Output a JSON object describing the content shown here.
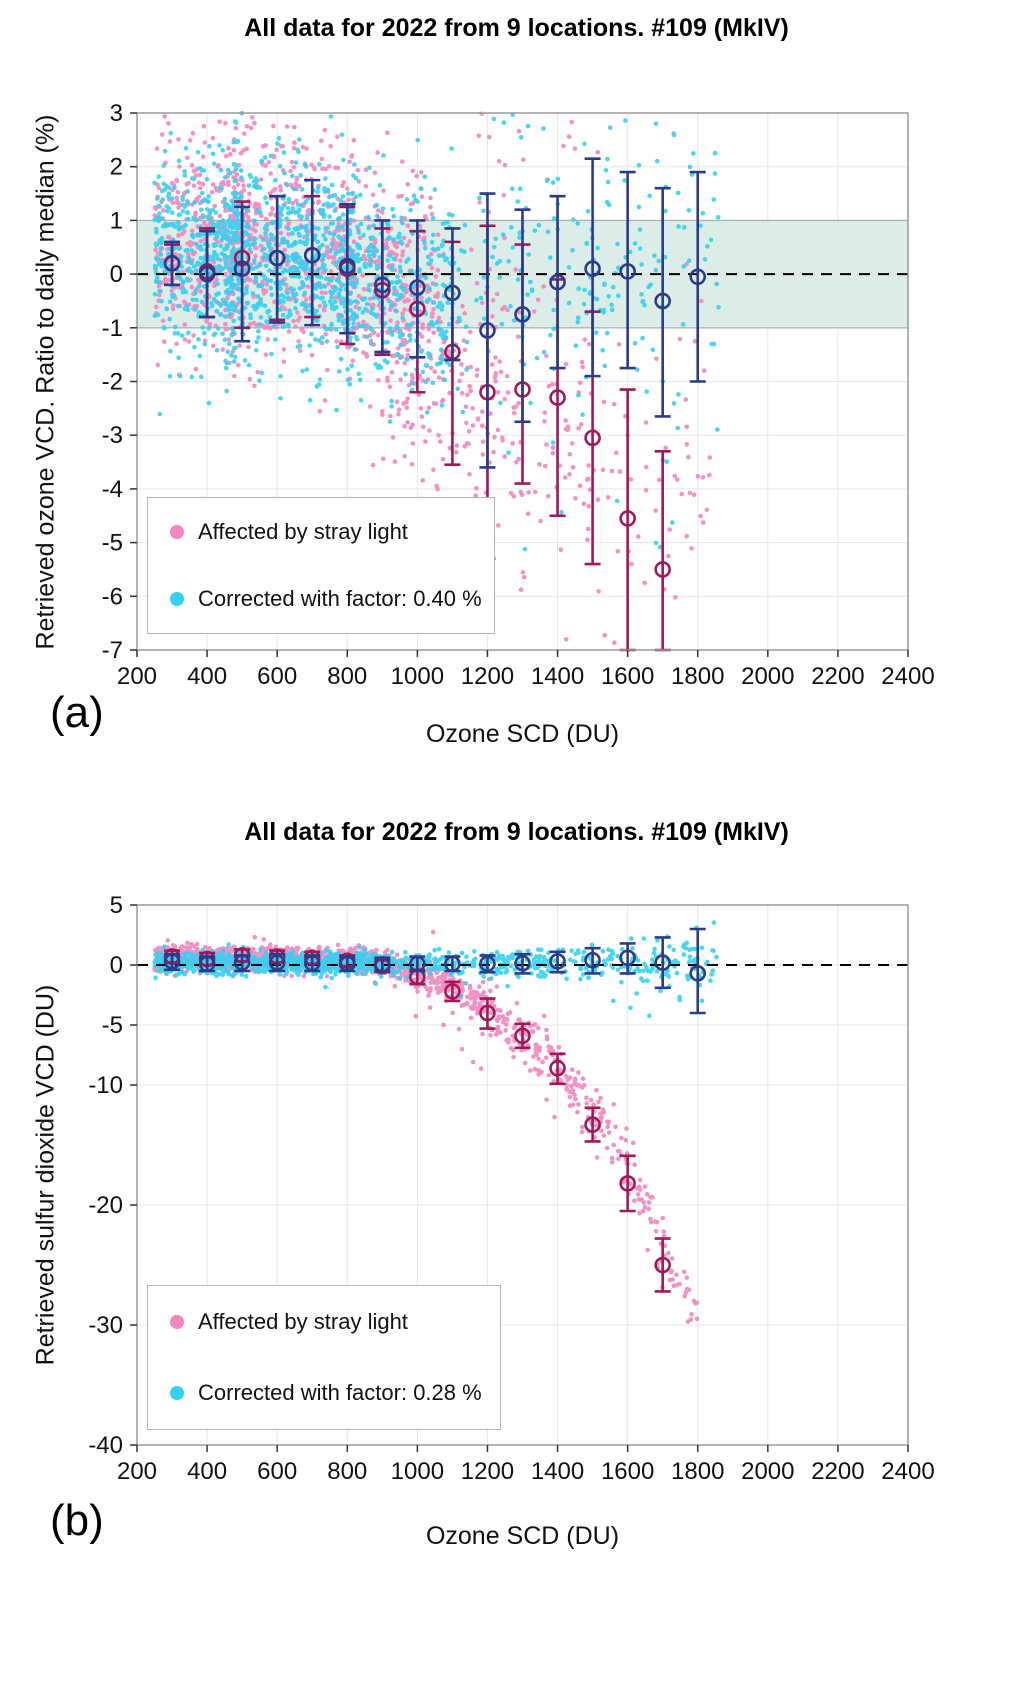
{
  "chart_data": [
    {
      "type": "scatter",
      "panel_label": "(a)",
      "title": "All data for 2022 from 9 locations. #109 (MkIV)",
      "xlabel": "Ozone SCD (DU)",
      "ylabel": "Retrieved ozone VCD. Ratio to daily median (%)",
      "xlim": [
        200,
        2400
      ],
      "ylim": [
        -7,
        3
      ],
      "xticks": [
        200,
        400,
        600,
        800,
        1000,
        1200,
        1400,
        1600,
        1800,
        2000,
        2200,
        2400
      ],
      "yticks": [
        3,
        2,
        1,
        0,
        -1,
        -2,
        -3,
        -4,
        -5,
        -6,
        -7
      ],
      "grid": true,
      "zero_line": 0,
      "band": {
        "range": [
          -1,
          1
        ],
        "fill": "#dcede7",
        "edge": "#a3b8b2"
      },
      "legend": [
        {
          "label": "Affected by stray light",
          "color": "#f585bf"
        },
        {
          "label": "Corrected with factor: 0.40 %",
          "color": "#30d2f2"
        }
      ],
      "scatter_series": [
        {
          "name": "affected-by-stray-light",
          "color": "#f585bf",
          "clusters": [
            {
              "x": [
                250,
                500
              ],
              "n": 330,
              "y": [
                0.6,
                0.55
              ],
              "sd": [
                1.0,
                1.05
              ]
            },
            {
              "x": [
                450,
                820
              ],
              "n": 520,
              "y": [
                0.55,
                0.35
              ],
              "sd": [
                1.05,
                1.0
              ]
            },
            {
              "x": [
                800,
                1060
              ],
              "n": 260,
              "y": [
                0.1,
                -0.4
              ],
              "sd": [
                1.0,
                1.1
              ]
            },
            {
              "x": [
                860,
                1260
              ],
              "n": 140,
              "y": [
                -1.5,
                -2.3
              ],
              "sd": [
                1.0,
                1.3
              ]
            },
            {
              "x": [
                1060,
                1500
              ],
              "n": 100,
              "y": [
                -2.2,
                -3.2
              ],
              "sd": [
                1.6,
                1.8
              ]
            },
            {
              "x": [
                1350,
                1840
              ],
              "n": 80,
              "y": [
                -3.2,
                -3.8
              ],
              "sd": [
                1.8,
                1.8
              ]
            },
            {
              "x": [
                1150,
                1550
              ],
              "n": 14,
              "y": [
                2.3,
                2.3
              ],
              "sd": [
                0.4,
                0.4
              ]
            }
          ]
        },
        {
          "name": "corrected",
          "color": "#30d2f2",
          "clusters": [
            {
              "x": [
                250,
                500
              ],
              "n": 380,
              "y": [
                0.4,
                0.4
              ],
              "sd": [
                0.85,
                0.95
              ]
            },
            {
              "x": [
                450,
                820
              ],
              "n": 600,
              "y": [
                0.4,
                0.2
              ],
              "sd": [
                0.95,
                0.95
              ]
            },
            {
              "x": [
                800,
                1100
              ],
              "n": 300,
              "y": [
                -0.1,
                -0.4
              ],
              "sd": [
                0.95,
                1.0
              ]
            },
            {
              "x": [
                1050,
                1560
              ],
              "n": 110,
              "y": [
                -0.2,
                -0.1
              ],
              "sd": [
                1.1,
                1.2
              ]
            },
            {
              "x": [
                1450,
                1860
              ],
              "n": 80,
              "y": [
                0.0,
                0.0
              ],
              "sd": [
                1.2,
                1.3
              ]
            },
            {
              "x": [
                1250,
                1750
              ],
              "n": 12,
              "y": [
                -3.3,
                -3.8
              ],
              "sd": [
                1.3,
                1.5
              ]
            },
            {
              "x": [
                1200,
                1750
              ],
              "n": 10,
              "y": [
                2.6,
                2.6
              ],
              "sd": [
                0.35,
                0.35
              ]
            }
          ]
        }
      ],
      "binned_series": [
        {
          "name": "affected-binned-mean",
          "color": "#a01859",
          "x": [
            300,
            400,
            500,
            600,
            700,
            800,
            900,
            1000,
            1100,
            1200,
            1300,
            1400,
            1500,
            1600,
            1700
          ],
          "y": [
            0.2,
            0.05,
            0.3,
            0.3,
            0.35,
            0.1,
            -0.3,
            -0.65,
            -1.45,
            -2.2,
            -2.15,
            -2.3,
            -3.05,
            -4.55,
            -5.5
          ],
          "hi": [
            0.55,
            0.85,
            1.35,
            1.45,
            1.45,
            1.25,
            0.85,
            0.8,
            0.6,
            0.9,
            0.55,
            -0.1,
            -0.7,
            -2.15,
            -3.3
          ],
          "lo": [
            -0.2,
            -0.8,
            -1.0,
            -0.85,
            -0.8,
            -1.3,
            -1.5,
            -2.2,
            -3.55,
            -5.3,
            -3.9,
            -4.5,
            -5.4,
            -7.0,
            -7.2
          ]
        },
        {
          "name": "corrected-binned-mean",
          "color": "#2b3b8c",
          "x": [
            300,
            400,
            500,
            600,
            700,
            800,
            900,
            1000,
            1100,
            1200,
            1300,
            1400,
            1500,
            1600,
            1700,
            1800
          ],
          "y": [
            0.2,
            0.0,
            0.1,
            0.3,
            0.35,
            0.15,
            -0.2,
            -0.25,
            -0.35,
            -1.05,
            -0.75,
            -0.15,
            0.1,
            0.05,
            -0.5,
            -0.05
          ],
          "hi": [
            0.6,
            0.8,
            1.25,
            1.45,
            1.75,
            1.3,
            1.0,
            1.0,
            0.85,
            1.5,
            1.2,
            1.45,
            2.15,
            1.9,
            1.6,
            1.9
          ],
          "lo": [
            -0.2,
            -0.8,
            -1.25,
            -0.9,
            -0.95,
            -1.1,
            -1.45,
            -1.55,
            -1.6,
            -3.6,
            -2.75,
            -1.75,
            -1.9,
            -1.75,
            -2.65,
            -2.0
          ]
        }
      ]
    },
    {
      "type": "scatter",
      "panel_label": "(b)",
      "title": "All data for 2022 from 9 locations. #109 (MkIV)",
      "xlabel": "Ozone SCD (DU)",
      "ylabel": "Retrieved sulfur dioxide VCD (DU)",
      "xlim": [
        200,
        2400
      ],
      "ylim": [
        -40,
        5
      ],
      "xticks": [
        200,
        400,
        600,
        800,
        1000,
        1200,
        1400,
        1600,
        1800,
        2000,
        2200,
        2400
      ],
      "yticks": [
        5,
        0,
        -5,
        -10,
        -20,
        -30,
        -40
      ],
      "grid": true,
      "zero_line": 0,
      "band": null,
      "legend": [
        {
          "label": "Affected by stray light",
          "color": "#f585bf"
        },
        {
          "label": "Corrected with factor: 0.28 %",
          "color": "#30d2f2"
        }
      ],
      "scatter_series": [
        {
          "name": "affected-by-stray-light",
          "color": "#f585bf",
          "clusters": [
            {
              "x": [
                250,
                820
              ],
              "n": 820,
              "y": [
                0.6,
                0.5
              ],
              "sd": [
                0.5,
                0.5
              ]
            },
            {
              "x": [
                820,
                920
              ],
              "n": 130,
              "y": [
                0.45,
                0.1
              ],
              "sd": [
                0.5,
                0.55
              ]
            },
            {
              "x": [
                920,
                1020
              ],
              "n": 100,
              "y": [
                0.0,
                -0.9
              ],
              "sd": [
                0.6,
                0.65
              ]
            },
            {
              "x": [
                1020,
                1120
              ],
              "n": 80,
              "y": [
                -1.0,
                -2.1
              ],
              "sd": [
                0.7,
                0.75
              ]
            },
            {
              "x": [
                1120,
                1220
              ],
              "n": 65,
              "y": [
                -2.2,
                -4.0
              ],
              "sd": [
                0.8,
                0.85
              ]
            },
            {
              "x": [
                1220,
                1320
              ],
              "n": 55,
              "y": [
                -4.1,
                -6.0
              ],
              "sd": [
                0.9,
                0.95
              ]
            },
            {
              "x": [
                1320,
                1420
              ],
              "n": 50,
              "y": [
                -6.1,
                -8.8
              ],
              "sd": [
                1.0,
                1.1
              ]
            },
            {
              "x": [
                1420,
                1520
              ],
              "n": 45,
              "y": [
                -9.0,
                -13.0
              ],
              "sd": [
                1.2,
                1.3
              ]
            },
            {
              "x": [
                1520,
                1620
              ],
              "n": 40,
              "y": [
                -13.2,
                -18.0
              ],
              "sd": [
                1.4,
                1.5
              ]
            },
            {
              "x": [
                1620,
                1720
              ],
              "n": 35,
              "y": [
                -18.3,
                -25.0
              ],
              "sd": [
                1.5,
                1.6
              ]
            },
            {
              "x": [
                1720,
                1800
              ],
              "n": 22,
              "y": [
                -25.3,
                -28.8
              ],
              "sd": [
                1.2,
                1.0
              ]
            },
            {
              "x": [
                950,
                1450
              ],
              "n": 20,
              "y": [
                -3.0,
                -9.5
              ],
              "sd": [
                2.5,
                3.0
              ]
            }
          ]
        },
        {
          "name": "corrected",
          "color": "#30d2f2",
          "clusters": [
            {
              "x": [
                250,
                900
              ],
              "n": 850,
              "y": [
                0.15,
                0.15
              ],
              "sd": [
                0.45,
                0.45
              ]
            },
            {
              "x": [
                900,
                1400
              ],
              "n": 260,
              "y": [
                0.1,
                0.1
              ],
              "sd": [
                0.5,
                0.55
              ]
            },
            {
              "x": [
                1400,
                1860
              ],
              "n": 150,
              "y": [
                0.1,
                0.2
              ],
              "sd": [
                0.8,
                1.0
              ]
            },
            {
              "x": [
                1550,
                1850
              ],
              "n": 14,
              "y": [
                -2.2,
                -2.8
              ],
              "sd": [
                1.3,
                1.5
              ]
            },
            {
              "x": [
                600,
                1300
              ],
              "n": 8,
              "y": [
                -1.6,
                -1.6
              ],
              "sd": [
                0.5,
                0.5
              ]
            }
          ]
        }
      ],
      "binned_series": [
        {
          "name": "affected-binned-mean",
          "color": "#a01859",
          "x": [
            300,
            400,
            500,
            600,
            700,
            800,
            900,
            1000,
            1100,
            1200,
            1300,
            1400,
            1500,
            1600,
            1700
          ],
          "y": [
            0.7,
            0.5,
            0.8,
            0.7,
            0.6,
            0.35,
            -0.1,
            -1.0,
            -2.2,
            -4.0,
            -5.9,
            -8.6,
            -13.3,
            -18.2,
            -25.0
          ],
          "hi": [
            1.2,
            1.0,
            1.3,
            1.2,
            1.1,
            0.8,
            0.4,
            -0.4,
            -1.4,
            -2.8,
            -4.9,
            -7.4,
            -11.9,
            -15.9,
            -22.8
          ],
          "lo": [
            0.2,
            0.0,
            0.3,
            0.2,
            0.1,
            -0.1,
            -0.6,
            -1.6,
            -3.0,
            -5.3,
            -6.9,
            -9.9,
            -14.7,
            -20.5,
            -27.2
          ]
        },
        {
          "name": "corrected-binned-mean",
          "color": "#2b3b8c",
          "x": [
            300,
            400,
            500,
            600,
            700,
            800,
            900,
            1000,
            1100,
            1200,
            1300,
            1400,
            1500,
            1600,
            1700,
            1800
          ],
          "y": [
            0.3,
            0.1,
            0.2,
            0.2,
            0.15,
            0.1,
            0.05,
            0.1,
            0.1,
            0.1,
            0.15,
            0.3,
            0.4,
            0.6,
            0.2,
            -0.7
          ],
          "hi": [
            0.9,
            0.7,
            0.8,
            0.9,
            0.8,
            0.7,
            0.6,
            0.7,
            0.7,
            0.8,
            0.9,
            1.1,
            1.4,
            1.8,
            2.3,
            3.0
          ],
          "lo": [
            -0.4,
            -0.5,
            -0.5,
            -0.5,
            -0.5,
            -0.5,
            -0.5,
            -0.5,
            -0.5,
            -0.6,
            -0.7,
            -0.6,
            -0.7,
            -0.7,
            -1.9,
            -4.0
          ]
        }
      ]
    }
  ]
}
